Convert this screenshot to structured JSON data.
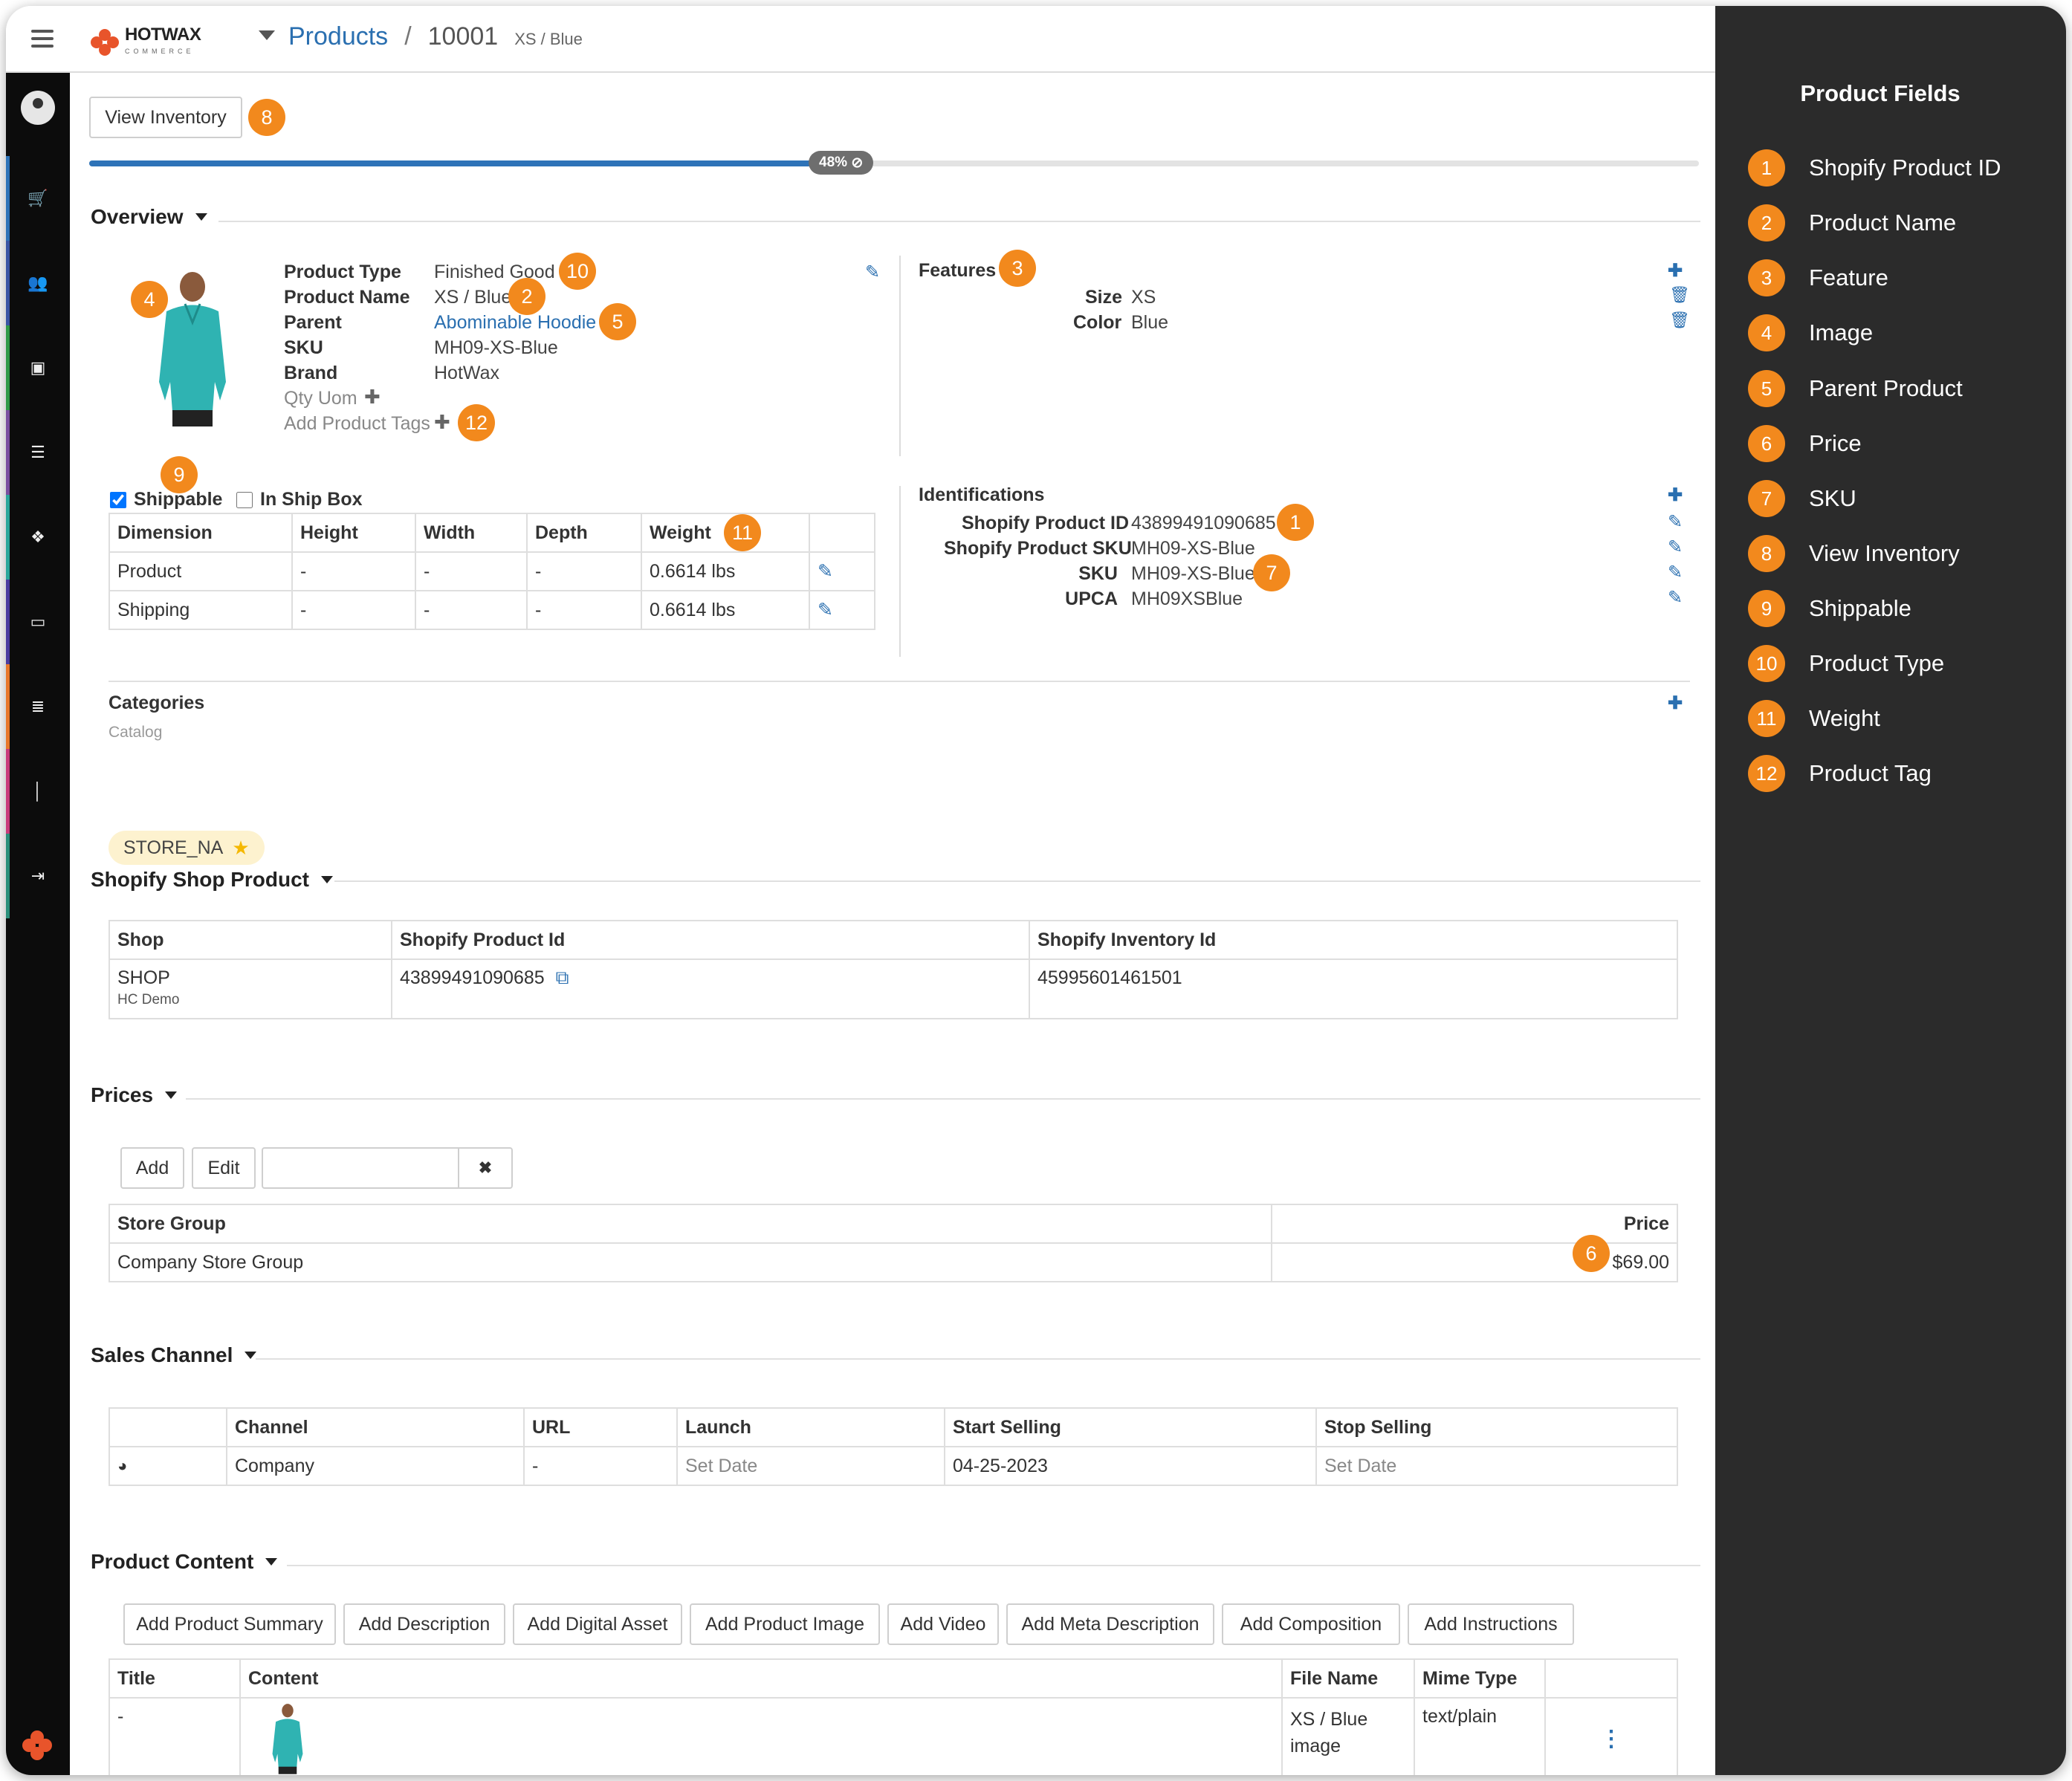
{
  "header": {
    "breadcrumb_products": "Products",
    "breadcrumb_sep": "/",
    "breadcrumb_id": "10001",
    "breadcrumb_variant": "XS / Blue",
    "logo_text": "HOTWAX",
    "logo_sub": "COMMERCE"
  },
  "toolbar": {
    "view_inventory": "View Inventory"
  },
  "progress": {
    "label": "48%",
    "percent": 48
  },
  "overview": {
    "title": "Overview",
    "fields": [
      {
        "label": "Product Type",
        "value": "Finished Good"
      },
      {
        "label": "Product Name",
        "value": "XS / Blue"
      },
      {
        "label": "Parent",
        "value": "Abominable Hoodie"
      },
      {
        "label": "SKU",
        "value": "MH09-XS-Blue"
      },
      {
        "label": "Brand",
        "value": "HotWax"
      }
    ],
    "qty_uom": "Qty Uom",
    "add_tags": "Add Product Tags",
    "features_title": "Features",
    "features": [
      {
        "label": "Size",
        "value": "XS"
      },
      {
        "label": "Color",
        "value": "Blue"
      }
    ],
    "shippable": "Shippable",
    "in_ship_box": "In Ship Box",
    "dim_headers": [
      "Dimension",
      "Height",
      "Width",
      "Depth",
      "Weight"
    ],
    "dim_rows": [
      {
        "name": "Product",
        "height": "-",
        "width": "-",
        "depth": "-",
        "weight": "0.6614 lbs"
      },
      {
        "name": "Shipping",
        "height": "-",
        "width": "-",
        "depth": "-",
        "weight": "0.6614 lbs"
      }
    ],
    "ident_title": "Identifications",
    "identifications": [
      {
        "label": "Shopify Product ID",
        "value": "43899491090685"
      },
      {
        "label": "Shopify Product SKU",
        "value": "MH09-XS-Blue"
      },
      {
        "label": "SKU",
        "value": "MH09-XS-Blue"
      },
      {
        "label": "UPCA",
        "value": "MH09XSBlue"
      }
    ],
    "categories_title": "Categories",
    "catalog_label": "Catalog",
    "category_chip": "STORE_NA"
  },
  "shopify": {
    "title": "Shopify Shop Product",
    "headers": [
      "Shop",
      "Shopify Product Id",
      "Shopify Inventory Id"
    ],
    "shop": "SHOP",
    "shop_sub": "HC Demo",
    "product_id": "43899491090685",
    "inventory_id": "45995601461501"
  },
  "prices": {
    "title": "Prices",
    "add": "Add",
    "edit": "Edit",
    "clear": "✖",
    "headers": [
      "Store Group",
      "Price"
    ],
    "row": {
      "group": "Company Store Group",
      "price": "$69.00"
    }
  },
  "sales_channel": {
    "title": "Sales Channel",
    "headers": [
      "",
      "Channel",
      "URL",
      "Launch",
      "Start Selling",
      "Stop Selling"
    ],
    "row": {
      "channel": "Company",
      "url": "-",
      "launch": "Set Date",
      "start": "04-25-2023",
      "stop": "Set Date"
    }
  },
  "content": {
    "title": "Product Content",
    "buttons": [
      "Add Product Summary",
      "Add Description",
      "Add Digital Asset",
      "Add Product Image",
      "Add Video",
      "Add Meta Description",
      "Add Composition",
      "Add Instructions"
    ],
    "headers": [
      "Title",
      "Content",
      "File Name",
      "Mime Type",
      ""
    ],
    "row": {
      "title": "-",
      "file_line1": "XS / Blue",
      "file_line2": "image",
      "mime": "text/plain"
    }
  },
  "badges": [
    "1",
    "2",
    "3",
    "4",
    "5",
    "6",
    "7",
    "8",
    "9",
    "10",
    "11",
    "12"
  ],
  "panel": {
    "title": "Product Fields",
    "items": [
      {
        "num": "1",
        "label": "Shopify Product ID"
      },
      {
        "num": "2",
        "label": "Product Name"
      },
      {
        "num": "3",
        "label": "Feature"
      },
      {
        "num": "4",
        "label": "Image"
      },
      {
        "num": "5",
        "label": "Parent Product"
      },
      {
        "num": "6",
        "label": "Price"
      },
      {
        "num": "7",
        "label": "SKU"
      },
      {
        "num": "8",
        "label": "View Inventory"
      },
      {
        "num": "9",
        "label": "Shippable"
      },
      {
        "num": "10",
        "label": "Product Type"
      },
      {
        "num": "11",
        "label": "Weight"
      },
      {
        "num": "12",
        "label": "Product Tag"
      }
    ]
  },
  "colors": {
    "accent": "#2a6fb0",
    "badge": "#f2891d",
    "panel": "#2b2b2b",
    "rail": "#0c0c0c"
  },
  "icons": {
    "edit": "pencil-icon",
    "add": "plus-icon",
    "delete": "trash-icon",
    "external": "external-link-icon",
    "globe": "globe-icon",
    "menu": "kebab-icon"
  }
}
